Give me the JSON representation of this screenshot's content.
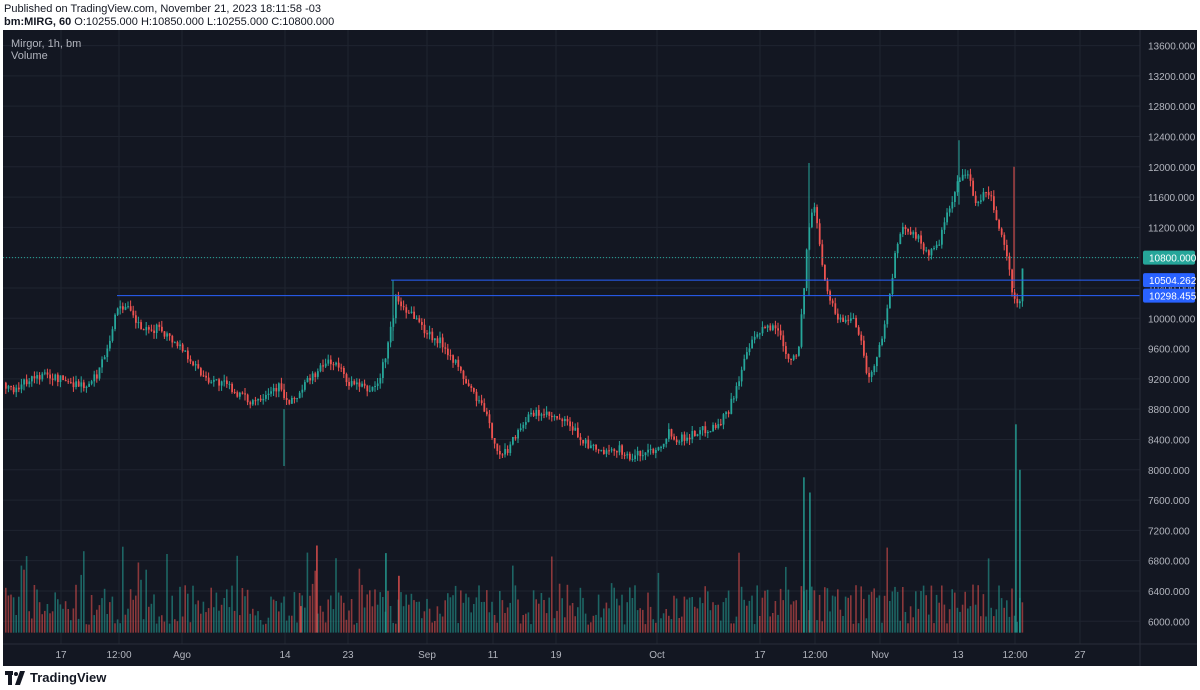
{
  "header": {
    "published": "Published on TradingView.com, November 21, 2023 18:11:58 -03",
    "symbol": "bm:MIRG, 60",
    "ohlc": "O:10255.000 H:10850.000 L:10255.000 C:10800.000"
  },
  "legend": {
    "title": "Mirgor, 1h, bm",
    "volume_label": "Volume"
  },
  "footer": {
    "brand": "TradingView"
  },
  "colors": {
    "background": "#131722",
    "up": "#26a69a",
    "down": "#ef5350",
    "grid": "#1f2430",
    "axis_text": "#b2b5be",
    "line_marker": "#2962ff",
    "last_price": "#26a69a"
  },
  "chart_data": {
    "type": "candlestick",
    "y_axis": {
      "ticks": [
        6000,
        6400,
        6800,
        7200,
        7600,
        8000,
        8400,
        8800,
        9200,
        9600,
        10000,
        10400,
        10800,
        11200,
        11600,
        12000,
        12400,
        12800,
        13200,
        13600
      ],
      "tick_labels": [
        "6000.000",
        "6400.000",
        "6800.000",
        "7200.000",
        "7600.000",
        "8000.000",
        "8400.000",
        "8800.000",
        "9200.000",
        "9600.000",
        "10000.000",
        "10400.000",
        "10800.000",
        "11200.000",
        "11600.000",
        "12000.000",
        "12400.000",
        "12800.000",
        "13200.000",
        "13600.000"
      ],
      "range": [
        5700,
        13700
      ],
      "position": "right"
    },
    "x_axis": {
      "tick_labels": [
        "17",
        "12:00",
        "Ago",
        "14",
        "23",
        "Sep",
        "11",
        "19",
        "Oct",
        "17",
        "12:00",
        "Nov",
        "13",
        "12:00",
        "27"
      ]
    },
    "price_labels": [
      {
        "value": 10800.0,
        "label": "10800.000",
        "kind": "last-price"
      },
      {
        "value": 10504.262,
        "label": "10504.262",
        "kind": "horizontal-line"
      },
      {
        "value": 10298.455,
        "label": "10298.455",
        "kind": "horizontal-line"
      }
    ],
    "last": {
      "open": 10255.0,
      "high": 10850.0,
      "low": 10255.0,
      "close": 10800.0
    },
    "path_points": [
      [
        0,
        9150
      ],
      [
        10,
        9050
      ],
      [
        25,
        9200
      ],
      [
        40,
        9250
      ],
      [
        55,
        9200
      ],
      [
        70,
        9150
      ],
      [
        85,
        9100
      ],
      [
        95,
        9300
      ],
      [
        105,
        9700
      ],
      [
        115,
        10200
      ],
      [
        125,
        10100
      ],
      [
        135,
        9900
      ],
      [
        145,
        9800
      ],
      [
        155,
        9900
      ],
      [
        165,
        9750
      ],
      [
        175,
        9650
      ],
      [
        185,
        9500
      ],
      [
        195,
        9300
      ],
      [
        205,
        9200
      ],
      [
        215,
        9150
      ],
      [
        225,
        9100
      ],
      [
        235,
        9000
      ],
      [
        245,
        8900
      ],
      [
        255,
        8950
      ],
      [
        265,
        9050
      ],
      [
        275,
        9100
      ],
      [
        285,
        8850
      ],
      [
        295,
        9000
      ],
      [
        305,
        9200
      ],
      [
        315,
        9300
      ],
      [
        325,
        9450
      ],
      [
        335,
        9350
      ],
      [
        345,
        9150
      ],
      [
        355,
        9100
      ],
      [
        365,
        9050
      ],
      [
        375,
        9150
      ],
      [
        385,
        9700
      ],
      [
        392,
        10250
      ],
      [
        400,
        10150
      ],
      [
        410,
        10050
      ],
      [
        420,
        9850
      ],
      [
        430,
        9750
      ],
      [
        440,
        9650
      ],
      [
        450,
        9450
      ],
      [
        460,
        9200
      ],
      [
        470,
        9000
      ],
      [
        480,
        8800
      ],
      [
        490,
        8400
      ],
      [
        497,
        8150
      ],
      [
        505,
        8300
      ],
      [
        515,
        8550
      ],
      [
        525,
        8700
      ],
      [
        535,
        8750
      ],
      [
        545,
        8700
      ],
      [
        555,
        8650
      ],
      [
        565,
        8600
      ],
      [
        575,
        8450
      ],
      [
        585,
        8300
      ],
      [
        595,
        8250
      ],
      [
        605,
        8200
      ],
      [
        615,
        8300
      ],
      [
        625,
        8150
      ],
      [
        635,
        8200
      ],
      [
        645,
        8250
      ],
      [
        655,
        8300
      ],
      [
        665,
        8500
      ],
      [
        675,
        8400
      ],
      [
        685,
        8450
      ],
      [
        695,
        8500
      ],
      [
        705,
        8550
      ],
      [
        715,
        8600
      ],
      [
        725,
        8800
      ],
      [
        735,
        9200
      ],
      [
        745,
        9600
      ],
      [
        755,
        9800
      ],
      [
        765,
        9900
      ],
      [
        775,
        9850
      ],
      [
        785,
        9450
      ],
      [
        795,
        9600
      ],
      [
        800,
        10400
      ],
      [
        805,
        11200
      ],
      [
        810,
        11500
      ],
      [
        815,
        11100
      ],
      [
        820,
        10600
      ],
      [
        825,
        10300
      ],
      [
        832,
        10050
      ],
      [
        840,
        9950
      ],
      [
        848,
        10050
      ],
      [
        856,
        9800
      ],
      [
        864,
        9200
      ],
      [
        872,
        9400
      ],
      [
        880,
        9900
      ],
      [
        886,
        10300
      ],
      [
        892,
        10900
      ],
      [
        900,
        11200
      ],
      [
        910,
        11150
      ],
      [
        918,
        10950
      ],
      [
        926,
        10850
      ],
      [
        934,
        10950
      ],
      [
        942,
        11300
      ],
      [
        950,
        11600
      ],
      [
        958,
        11950
      ],
      [
        965,
        11850
      ],
      [
        972,
        11500
      ],
      [
        980,
        11650
      ],
      [
        988,
        11550
      ],
      [
        995,
        11200
      ],
      [
        1002,
        10900
      ],
      [
        1008,
        10400
      ],
      [
        1012,
        10150
      ],
      [
        1016,
        10250
      ],
      [
        1020,
        10800
      ]
    ],
    "volume_spikes": [
      [
        280,
        5.0
      ],
      [
        297,
        6.2
      ],
      [
        313,
        7.0
      ],
      [
        382,
        6.9
      ],
      [
        395,
        6.6
      ],
      [
        800,
        7.9
      ],
      [
        806,
        7.7
      ],
      [
        1012,
        8.6
      ],
      [
        1016,
        8.0
      ]
    ]
  }
}
